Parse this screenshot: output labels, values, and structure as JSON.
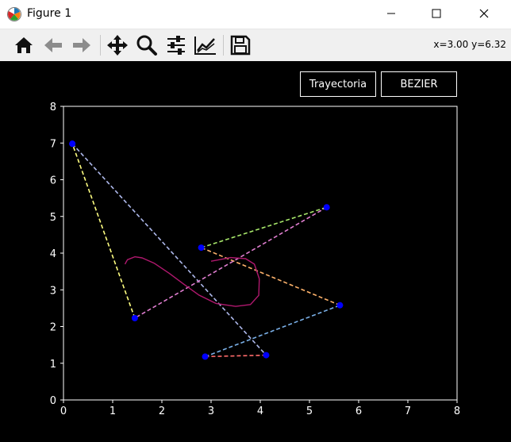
{
  "window": {
    "title": "Figure 1",
    "controls": [
      "minimize",
      "maximize",
      "close"
    ]
  },
  "toolbar": {
    "tools": [
      "home-icon",
      "back-arrow-icon",
      "forward-arrow-icon",
      "pan-icon",
      "zoom-icon",
      "subplots-config-icon",
      "axes-edit-icon",
      "save-icon"
    ],
    "coords": "x=3.00 y=6.32"
  },
  "buttons": {
    "trayectoria": "Trayectoria",
    "bezier": "BEZIER"
  },
  "colors": {
    "background": "#000000",
    "axes": "#ffffff",
    "control_points": "#0000ff",
    "curve": "#b0186e"
  },
  "chart_data": {
    "type": "line",
    "xlim": [
      0,
      8
    ],
    "ylim": [
      0,
      8
    ],
    "xticks": [
      "0",
      "1",
      "2",
      "3",
      "4",
      "5",
      "6",
      "7",
      "8"
    ],
    "yticks": [
      "0",
      "1",
      "2",
      "3",
      "4",
      "5",
      "6",
      "7",
      "8"
    ],
    "grid": false,
    "control_points": [
      [
        0.18,
        6.98
      ],
      [
        4.12,
        1.22
      ],
      [
        2.88,
        1.18
      ],
      [
        5.62,
        2.58
      ],
      [
        2.8,
        4.15
      ],
      [
        5.35,
        5.25
      ],
      [
        1.45,
        2.23
      ],
      [
        0.18,
        6.98
      ]
    ],
    "segment_colors": [
      "#aeb9ec",
      "#ff6b6b",
      "#7ab0e8",
      "#ffb36b",
      "#a8e86b",
      "#e07ed0",
      "#ffff80"
    ],
    "curve": [
      [
        1.25,
        3.7
      ],
      [
        1.3,
        3.82
      ],
      [
        1.45,
        3.9
      ],
      [
        1.6,
        3.87
      ],
      [
        1.85,
        3.72
      ],
      [
        2.15,
        3.45
      ],
      [
        2.45,
        3.15
      ],
      [
        2.75,
        2.86
      ],
      [
        3.1,
        2.63
      ],
      [
        3.5,
        2.55
      ],
      [
        3.8,
        2.6
      ],
      [
        3.97,
        2.85
      ],
      [
        3.98,
        3.3
      ],
      [
        3.88,
        3.7
      ],
      [
        3.7,
        3.85
      ],
      [
        3.4,
        3.88
      ],
      [
        3.0,
        3.78
      ]
    ]
  }
}
